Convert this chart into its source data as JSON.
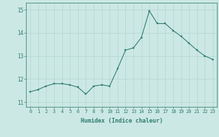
{
  "x": [
    0,
    1,
    2,
    3,
    4,
    5,
    6,
    7,
    8,
    9,
    10,
    11,
    12,
    13,
    14,
    15,
    16,
    17,
    18,
    19,
    20,
    21,
    22,
    23
  ],
  "y": [
    11.45,
    11.55,
    11.7,
    11.8,
    11.8,
    11.75,
    11.65,
    11.35,
    11.7,
    11.75,
    11.7,
    12.45,
    13.25,
    13.35,
    13.8,
    14.95,
    14.4,
    14.4,
    14.1,
    13.85,
    13.55,
    13.25,
    13.0,
    12.85
  ],
  "xlabel": "Humidex (Indice chaleur)",
  "ylim": [
    10.8,
    15.3
  ],
  "yticks": [
    11,
    12,
    13,
    14,
    15
  ],
  "xticks": [
    0,
    1,
    2,
    3,
    4,
    5,
    6,
    7,
    8,
    9,
    10,
    11,
    12,
    13,
    14,
    15,
    16,
    17,
    18,
    19,
    20,
    21,
    22,
    23
  ],
  "line_color": "#2e7d6e",
  "marker_color": "#2e7d6e",
  "bg_color": "#cce8e4",
  "grid_color": "#b0d4cf",
  "font_color": "#2e7d6e",
  "font_family": "monospace"
}
